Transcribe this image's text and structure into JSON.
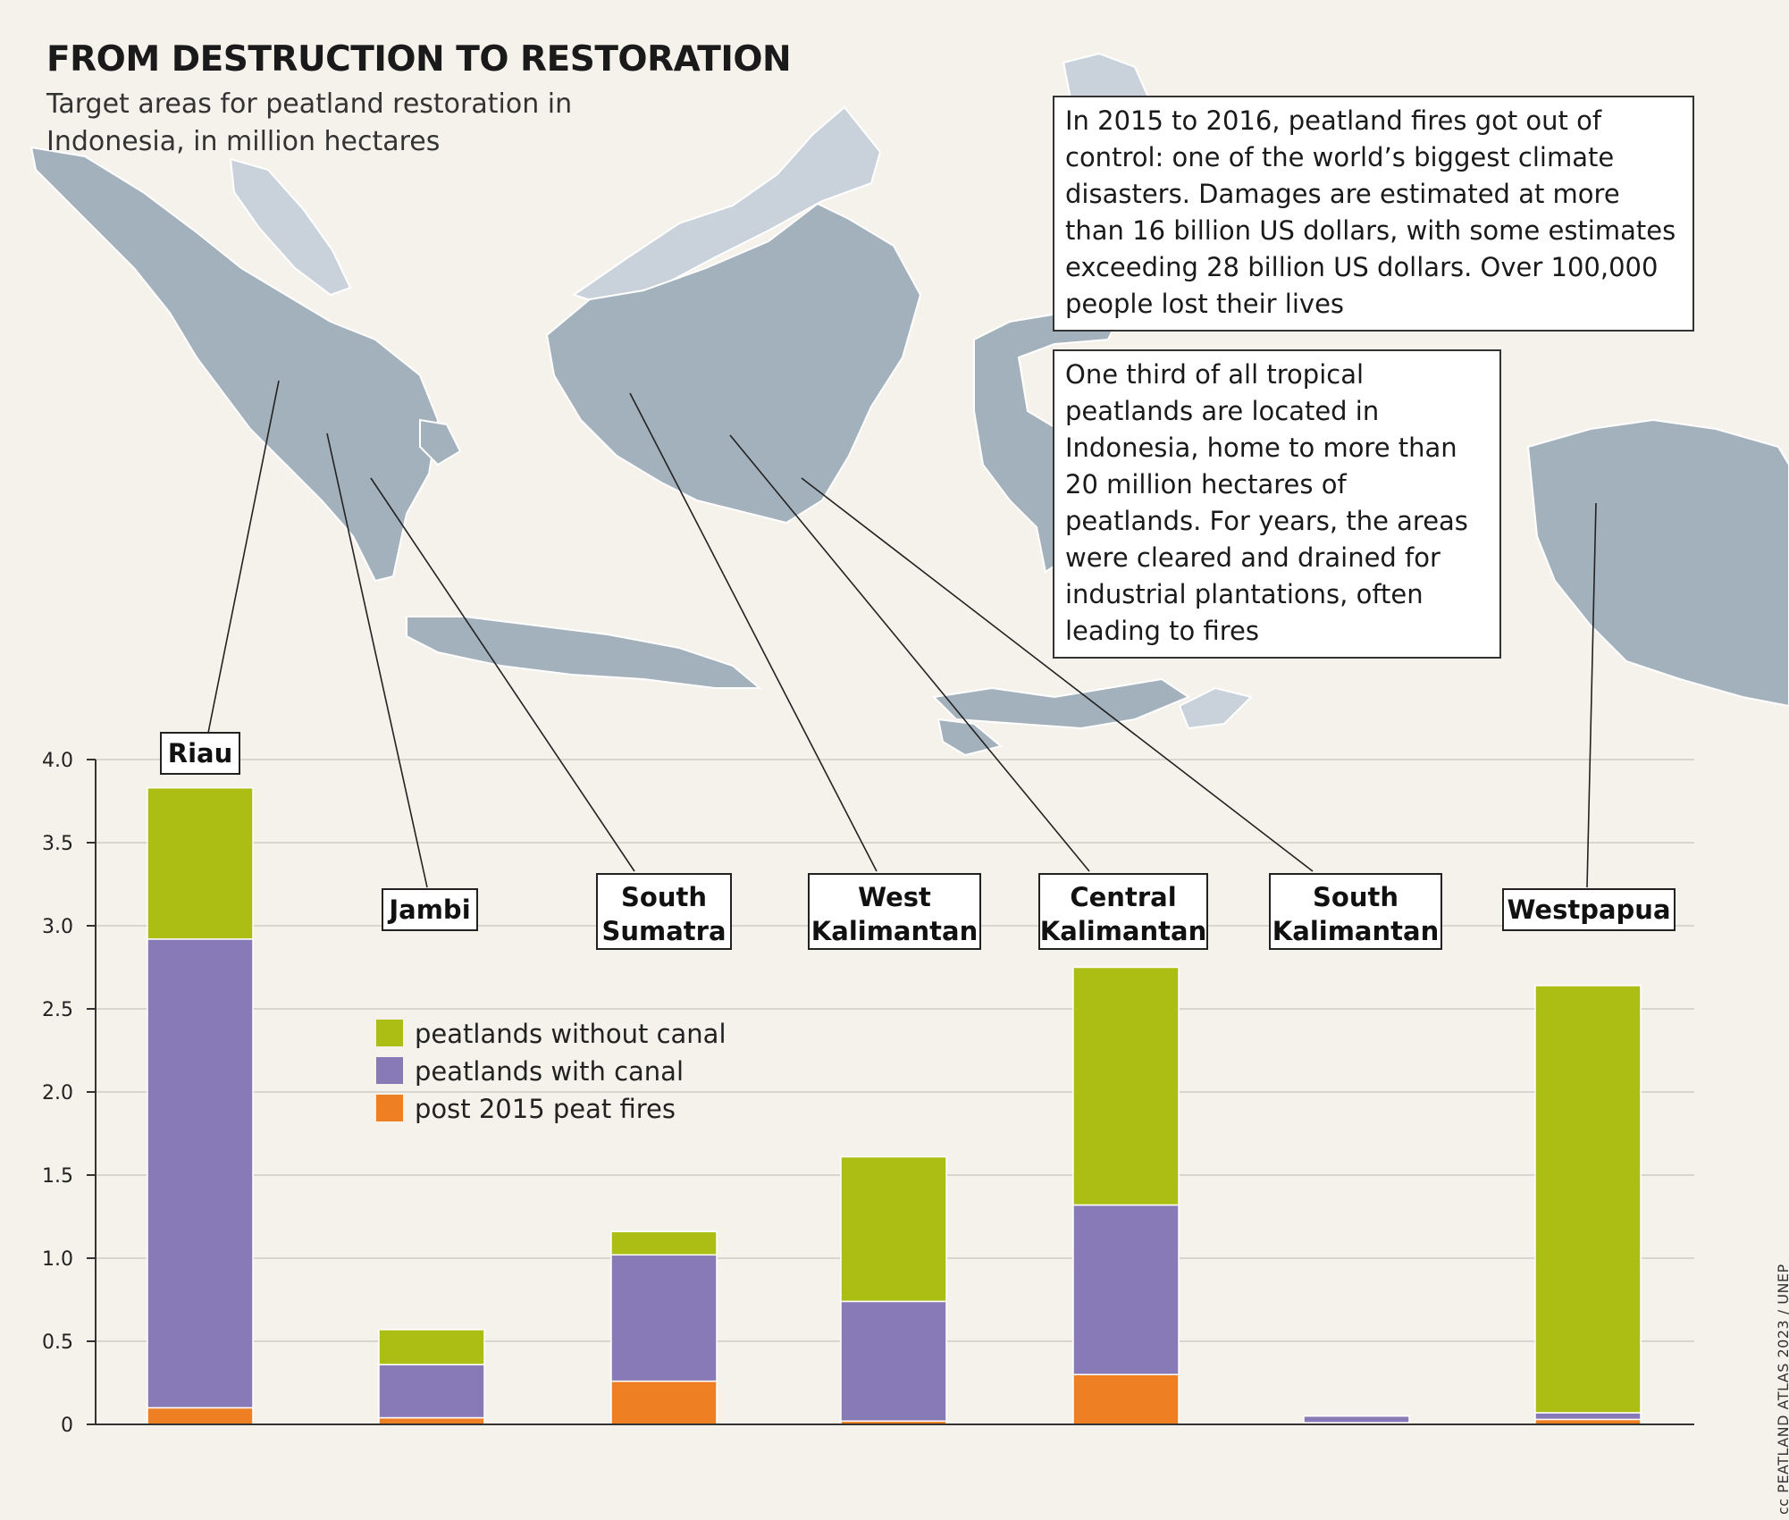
{
  "header": {
    "title": "FROM DESTRUCTION TO RESTORATION",
    "subtitle": "Target areas for peatland restoration in Indonesia, in million hectares"
  },
  "notes": [
    "In 2015 to 2016, peatland fires got out of control: one of the world’s biggest climate disasters. Damages are estimated at more than 16 billion US dollars, with some estimates exceeding 28 billion US dollars. Over 100,000 people lost their lives",
    "One third of all tropical peatlands are located in Indonesia, home to more than 20 million hectares of peatlands. For years, the areas were cleared and drained for industrial plantations, often leading to fires"
  ],
  "credit": "cc PEATLAND ATLAS 2023 / UNEP",
  "colors": {
    "background": "#f5f2ec",
    "map_land_indonesia": "#a3b1bc",
    "map_land_other": "#c9d2da",
    "peatlands_without_canal": "#acbd14",
    "peatlands_with_canal": "#887ab6",
    "post_2015_peat_fires": "#ef7f23"
  },
  "chart_data": {
    "type": "bar",
    "stacked": true,
    "categories": [
      "Riau",
      "Jambi",
      "South Sumatra",
      "West Kalimantan",
      "Central Kalimantan",
      "South Kalimantan",
      "Westpapua"
    ],
    "series": [
      {
        "name": "post 2015 peat fires",
        "values": [
          0.1,
          0.04,
          0.26,
          0.02,
          0.3,
          0.01,
          0.03
        ]
      },
      {
        "name": "peatlands with canal",
        "values": [
          2.82,
          0.32,
          0.76,
          0.72,
          1.02,
          0.04,
          0.04
        ]
      },
      {
        "name": "peatlands without canal",
        "values": [
          0.91,
          0.21,
          0.14,
          0.87,
          1.43,
          0.0,
          2.57
        ]
      }
    ],
    "legend_order": [
      "peatlands without canal",
      "peatlands with canal",
      "post 2015 peat fires"
    ],
    "yticks": [
      "0",
      "0.5",
      "1.0",
      "1.5",
      "2.0",
      "2.5",
      "3.0",
      "3.5",
      "4.0"
    ],
    "ylim": [
      0,
      4
    ],
    "grid": true,
    "legend_position": "center-left, inside plot",
    "title": "",
    "xlabel": "",
    "ylabel": ""
  }
}
